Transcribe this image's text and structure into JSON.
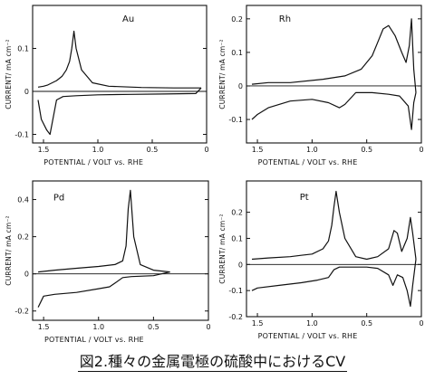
{
  "caption": "図2.種々の金属電極の硫酸中におけるCV",
  "chart_data": [
    {
      "type": "line",
      "title": "Au",
      "xlabel": "POTENTIAL / VOLT vs. RHE",
      "ylabel": "CURRENT/ mA cm⁻²",
      "xlim": [
        1.6,
        0.0
      ],
      "ylim": [
        -0.12,
        0.2
      ],
      "xticks": [
        1.5,
        1.0,
        0.5,
        0
      ],
      "yticks": [
        0.1,
        0,
        -0.1
      ],
      "xtick_labels": [
        "1.5",
        "1.0",
        "0.5",
        "0"
      ],
      "ytick_labels": [
        "0.1",
        "0",
        "-0.1"
      ],
      "series": [
        {
          "x": [
            0.05,
            0.3,
            0.6,
            0.9,
            1.05,
            1.15,
            1.2,
            1.22,
            1.24,
            1.26,
            1.29,
            1.33,
            1.38,
            1.42,
            1.46,
            1.5,
            1.55
          ],
          "y": [
            0.008,
            0.008,
            0.009,
            0.012,
            0.02,
            0.05,
            0.1,
            0.14,
            0.1,
            0.07,
            0.05,
            0.035,
            0.025,
            0.02,
            0.015,
            0.012,
            0.01
          ]
        },
        {
          "x": [
            1.55,
            1.52,
            1.47,
            1.44,
            1.41,
            1.38,
            1.32,
            1.2,
            1.0,
            0.7,
            0.4,
            0.1,
            0.05
          ],
          "y": [
            -0.02,
            -0.065,
            -0.09,
            -0.1,
            -0.06,
            -0.02,
            -0.012,
            -0.01,
            -0.008,
            -0.007,
            -0.006,
            -0.005,
            0.008
          ]
        }
      ]
    },
    {
      "type": "line",
      "title": "Rh",
      "xlabel": "POTENTIAL / VOLT vs. RHE",
      "ylabel": "CURRENT/ mA cm⁻²",
      "xlim": [
        1.6,
        0.0
      ],
      "ylim": [
        -0.17,
        0.24
      ],
      "xticks": [
        1.5,
        1.0,
        0.5,
        0
      ],
      "yticks": [
        0.2,
        0.1,
        0,
        -0.1
      ],
      "xtick_labels": [
        "1.5",
        "1.0",
        "0.5",
        "0"
      ],
      "ytick_labels": [
        "0.2",
        "0.1",
        "0",
        "-0.1"
      ],
      "series": [
        {
          "x": [
            0.05,
            0.07,
            0.09,
            0.11,
            0.14,
            0.18,
            0.24,
            0.3,
            0.35,
            0.4,
            0.45,
            0.55,
            0.7,
            0.9,
            1.2,
            1.4,
            1.55
          ],
          "y": [
            -0.02,
            0.05,
            0.2,
            0.12,
            0.07,
            0.1,
            0.15,
            0.18,
            0.17,
            0.13,
            0.09,
            0.05,
            0.03,
            0.02,
            0.01,
            0.01,
            0.005
          ]
        },
        {
          "x": [
            1.55,
            1.5,
            1.4,
            1.2,
            1.0,
            0.85,
            0.75,
            0.7,
            0.6,
            0.45,
            0.3,
            0.2,
            0.12,
            0.09,
            0.07,
            0.05
          ],
          "y": [
            -0.1,
            -0.085,
            -0.065,
            -0.045,
            -0.04,
            -0.05,
            -0.065,
            -0.055,
            -0.02,
            -0.02,
            -0.025,
            -0.03,
            -0.06,
            -0.13,
            -0.05,
            -0.02
          ]
        }
      ]
    },
    {
      "type": "line",
      "title": "Pd",
      "xlabel": "POTENTIAL / VOLT vs. RHE",
      "ylabel": "CURRENT/ mA cm⁻²",
      "xlim": [
        1.6,
        0.0
      ],
      "ylim": [
        -0.25,
        0.5
      ],
      "xticks": [
        1.5,
        1.0,
        0.5,
        0
      ],
      "yticks": [
        0.4,
        0.2,
        0,
        -0.2
      ],
      "xtick_labels": [
        "1.5",
        "1.0",
        "0.5",
        "0"
      ],
      "ytick_labels": [
        "0.4",
        "0.2",
        "0",
        "-0.2"
      ],
      "series": [
        {
          "x": [
            0.35,
            0.5,
            0.62,
            0.68,
            0.71,
            0.73,
            0.75,
            0.78,
            0.85,
            1.0,
            1.2,
            1.4,
            1.55
          ],
          "y": [
            0.01,
            0.02,
            0.05,
            0.2,
            0.45,
            0.35,
            0.15,
            0.07,
            0.05,
            0.04,
            0.03,
            0.02,
            0.01
          ]
        },
        {
          "x": [
            1.55,
            1.5,
            1.4,
            1.2,
            1.0,
            0.9,
            0.85,
            0.78,
            0.7,
            0.5,
            0.35
          ],
          "y": [
            -0.18,
            -0.12,
            -0.11,
            -0.1,
            -0.08,
            -0.07,
            -0.05,
            -0.02,
            -0.015,
            -0.01,
            0.01
          ]
        }
      ]
    },
    {
      "type": "line",
      "title": "Pt",
      "xlabel": "POTENTIAL / VOLT vs. RHE",
      "ylabel": "CURRENT/ mA cm⁻²",
      "xlim": [
        1.6,
        0.0
      ],
      "ylim": [
        -0.2,
        0.32
      ],
      "xticks": [
        1.5,
        1.0,
        0.5,
        0
      ],
      "yticks": [
        0.2,
        0.1,
        0,
        -0.1,
        -0.2
      ],
      "xtick_labels": [
        "1.5",
        "1.0",
        "0.5",
        "0"
      ],
      "ytick_labels": [
        "0.2",
        "0.1",
        "0",
        "-0.1",
        "-0.2"
      ],
      "series": [
        {
          "x": [
            0.05,
            0.08,
            0.1,
            0.13,
            0.18,
            0.22,
            0.25,
            0.3,
            0.4,
            0.5,
            0.6,
            0.7,
            0.75,
            0.78,
            0.8,
            0.82,
            0.85,
            0.9,
            1.0,
            1.1,
            1.2,
            1.4,
            1.55
          ],
          "y": [
            0.02,
            0.12,
            0.18,
            0.1,
            0.05,
            0.12,
            0.13,
            0.06,
            0.03,
            0.02,
            0.03,
            0.1,
            0.2,
            0.28,
            0.22,
            0.15,
            0.09,
            0.06,
            0.04,
            0.035,
            0.03,
            0.025,
            0.02
          ]
        },
        {
          "x": [
            1.55,
            1.5,
            1.3,
            1.1,
            0.95,
            0.85,
            0.8,
            0.75,
            0.7,
            0.6,
            0.5,
            0.4,
            0.3,
            0.26,
            0.22,
            0.17,
            0.13,
            0.1,
            0.08,
            0.05
          ],
          "y": [
            -0.1,
            -0.09,
            -0.08,
            -0.07,
            -0.06,
            -0.05,
            -0.02,
            -0.01,
            -0.01,
            -0.01,
            -0.01,
            -0.015,
            -0.04,
            -0.08,
            -0.04,
            -0.05,
            -0.1,
            -0.16,
            -0.08,
            0.02
          ]
        }
      ]
    }
  ]
}
